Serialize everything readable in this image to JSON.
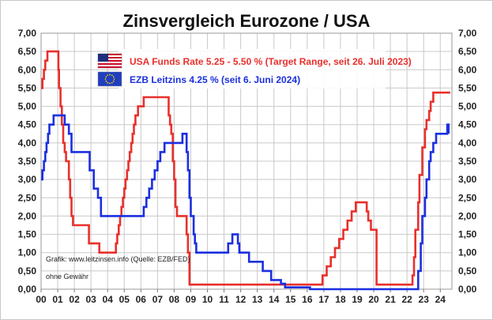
{
  "chart_data": {
    "type": "line",
    "title": "Zinsvergleich Eurozone / USA",
    "ylim": [
      0,
      7
    ],
    "y_ticks": [
      "0,00",
      "0,50",
      "1,00",
      "1,50",
      "2,00",
      "2,50",
      "3,00",
      "3,50",
      "4,00",
      "4,50",
      "5,00",
      "5,50",
      "6,00",
      "6,50",
      "7,00"
    ],
    "x_ticks": [
      "00",
      "01",
      "02",
      "03",
      "04",
      "05",
      "06",
      "07",
      "08",
      "09",
      "10",
      "11",
      "12",
      "13",
      "14",
      "15",
      "16",
      "17",
      "18",
      "19",
      "20",
      "21",
      "22",
      "23",
      "24"
    ],
    "xlim": [
      2000.0,
      2024.7
    ],
    "grid": true,
    "series": [
      {
        "name": "USA Funds Rate 5.25 - 5.50 % (Target Range, seit 26. Juli 2023)",
        "color": "#e8302c",
        "flag": "us-flag",
        "x": [
          2000.0,
          2000.08,
          2000.17,
          2000.25,
          2000.38,
          2001.0,
          2001.04,
          2001.08,
          2001.17,
          2001.25,
          2001.33,
          2001.42,
          2001.5,
          2001.67,
          2001.75,
          2001.83,
          2001.92,
          2002.88,
          2003.5,
          2004.5,
          2004.58,
          2004.67,
          2004.75,
          2004.83,
          2004.92,
          2005.0,
          2005.08,
          2005.17,
          2005.25,
          2005.33,
          2005.42,
          2005.5,
          2005.58,
          2005.67,
          2005.75,
          2005.83,
          2005.92,
          2006.0,
          2006.08,
          2006.17,
          2006.25,
          2006.33,
          2006.42,
          2006.5,
          2007.67,
          2007.75,
          2007.83,
          2007.92,
          2008.0,
          2008.08,
          2008.17,
          2008.25,
          2008.75,
          2008.83,
          2008.92,
          2015.92,
          2016.92,
          2017.17,
          2017.42,
          2017.67,
          2017.92,
          2018.17,
          2018.42,
          2018.67,
          2018.92,
          2019.58,
          2019.67,
          2019.83,
          2020.17,
          2020.25,
          2022.17,
          2022.33,
          2022.42,
          2022.5,
          2022.67,
          2022.75,
          2022.92,
          2023.08,
          2023.17,
          2023.33,
          2023.42,
          2023.58,
          2024.6
        ],
        "y": [
          5.5,
          5.75,
          6.0,
          6.25,
          6.5,
          6.5,
          6.0,
          5.5,
          5.0,
          4.5,
          4.0,
          3.75,
          3.5,
          3.0,
          2.5,
          2.0,
          1.75,
          1.25,
          1.0,
          1.25,
          1.5,
          1.75,
          2.0,
          2.25,
          2.5,
          2.75,
          3.0,
          3.25,
          3.5,
          3.75,
          4.0,
          4.25,
          4.5,
          4.75,
          4.75,
          5.0,
          5.0,
          5.0,
          5.0,
          5.25,
          5.25,
          5.25,
          5.25,
          5.25,
          4.75,
          4.5,
          4.25,
          3.5,
          3.0,
          2.25,
          2.0,
          2.0,
          1.5,
          1.0,
          0.125,
          0.125,
          0.375,
          0.625,
          0.875,
          1.125,
          1.375,
          1.625,
          1.875,
          2.125,
          2.375,
          2.125,
          1.875,
          1.625,
          0.125,
          0.125,
          0.125,
          0.375,
          0.875,
          1.625,
          2.375,
          3.125,
          3.875,
          4.375,
          4.625,
          4.875,
          5.125,
          5.375,
          5.375
        ]
      },
      {
        "name": "EZB Leitzins 4.25 %  (seit 6. Juni 2024)",
        "color": "#1a2fe0",
        "flag": "eu-flag",
        "x": [
          2000.0,
          2000.08,
          2000.17,
          2000.25,
          2000.33,
          2000.42,
          2000.5,
          2000.75,
          2001.42,
          2001.67,
          2001.83,
          2002.92,
          2003.17,
          2003.42,
          2003.5,
          2003.6,
          2005.92,
          2006.17,
          2006.33,
          2006.5,
          2006.67,
          2006.83,
          2007.0,
          2007.17,
          2007.42,
          2008.5,
          2008.75,
          2008.83,
          2008.92,
          2009.0,
          2009.17,
          2009.25,
          2009.33,
          2011.25,
          2011.5,
          2011.83,
          2011.92,
          2012.5,
          2013.33,
          2013.83,
          2014.42,
          2014.67,
          2016.17,
          2022.5,
          2022.67,
          2022.83,
          2022.92,
          2023.08,
          2023.17,
          2023.33,
          2023.42,
          2023.58,
          2023.75,
          2024.42,
          2024.5
        ],
        "y": [
          3.0,
          3.25,
          3.5,
          3.75,
          4.0,
          4.25,
          4.5,
          4.75,
          4.5,
          4.25,
          3.75,
          3.25,
          2.75,
          2.5,
          2.5,
          2.0,
          2.0,
          2.25,
          2.5,
          2.75,
          3.0,
          3.25,
          3.5,
          3.75,
          4.0,
          4.25,
          3.75,
          3.25,
          2.5,
          2.0,
          1.5,
          1.25,
          1.0,
          1.25,
          1.5,
          1.25,
          1.0,
          0.75,
          0.5,
          0.25,
          0.15,
          0.05,
          0.0,
          0.0,
          0.5,
          1.25,
          2.0,
          2.5,
          3.0,
          3.5,
          3.75,
          4.0,
          4.25,
          4.5,
          4.25
        ]
      }
    ],
    "annotations": [
      "Grafik: www.leitzinsen.info (Quelle: EZB/FED)",
      "ohne Gewähr"
    ]
  }
}
